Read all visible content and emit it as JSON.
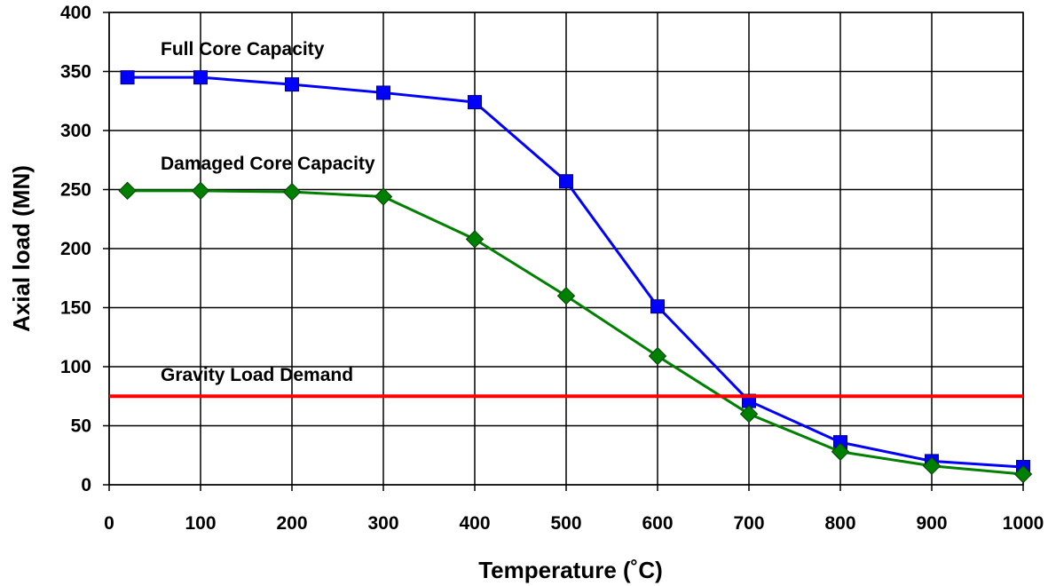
{
  "chart_data": {
    "type": "line",
    "xlabel": "Temperature (˚C)",
    "ylabel": "Axial load (MN)",
    "xlim": [
      0,
      1000
    ],
    "ylim": [
      0,
      400
    ],
    "xticks": [
      "0",
      "100",
      "200",
      "300",
      "400",
      "500",
      "600",
      "700",
      "800",
      "900",
      "1000"
    ],
    "yticks": [
      "0",
      "50",
      "100",
      "150",
      "200",
      "250",
      "300",
      "350",
      "400"
    ],
    "grid": true,
    "series": [
      {
        "name": "Full Core Capacity",
        "color": "#0000ff",
        "marker": "square",
        "x": [
          20,
          100,
          200,
          300,
          400,
          500,
          600,
          700,
          800,
          900,
          1000
        ],
        "y": [
          345,
          345,
          339,
          332,
          324,
          257,
          151,
          71,
          36,
          20,
          15
        ]
      },
      {
        "name": "Damaged Core Capacity",
        "color": "#008000",
        "marker": "diamond",
        "x": [
          20,
          100,
          200,
          300,
          400,
          500,
          600,
          700,
          800,
          900,
          1000
        ],
        "y": [
          249,
          249,
          248,
          244,
          208,
          160,
          109,
          60,
          28,
          16,
          9
        ]
      },
      {
        "name": "Gravity Load Demand",
        "color": "#ff0000",
        "marker": "none",
        "x": [
          0,
          1000
        ],
        "y": [
          75,
          75
        ]
      }
    ],
    "annotations": [
      "Full Core Capacity",
      "Damaged Core Capacity",
      "Gravity Load Demand"
    ]
  }
}
